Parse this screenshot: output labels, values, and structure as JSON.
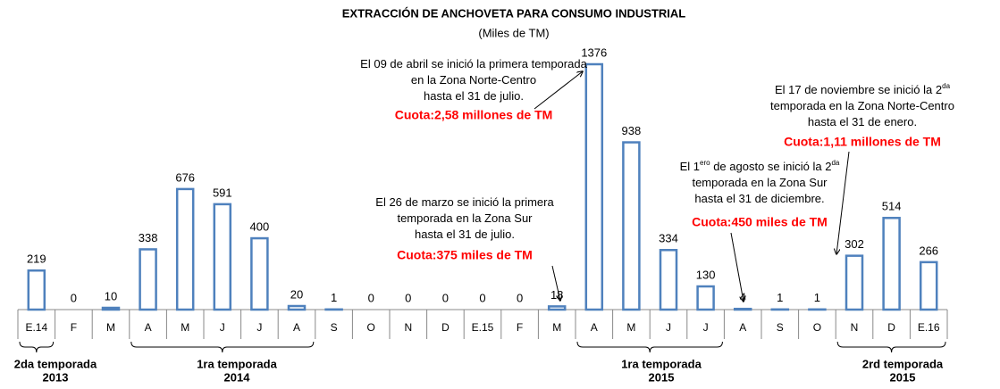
{
  "chart_data": {
    "type": "bar",
    "title": "EXTRACCIÓN DE ANCHOVETA PARA CONSUMO INDUSTRIAL",
    "subtitle": "(Miles de TM)",
    "categories": [
      "E.14",
      "F",
      "M",
      "A",
      "M",
      "J",
      "J",
      "A",
      "S",
      "O",
      "N",
      "D",
      "E.15",
      "F",
      "M",
      "A",
      "M",
      "J",
      "J",
      "A",
      "S",
      "O",
      "N",
      "D",
      "E.16"
    ],
    "values": [
      219,
      0,
      10,
      338,
      676,
      591,
      400,
      20,
      1,
      0,
      0,
      0,
      0,
      0,
      18,
      1376,
      938,
      334,
      130,
      4,
      1,
      1,
      302,
      514,
      266
    ],
    "color": "#4f81bd",
    "annotations": [
      {
        "lines": [
          [
            "El 09 de abril se inició la primera temporada"
          ],
          [
            "en la Zona  Norte-Centro"
          ],
          [
            "hasta el 31 de julio."
          ]
        ],
        "quota": "Cuota:2,58 millones de TM"
      },
      {
        "lines": [
          [
            "El 26 de marzo se inició la primera"
          ],
          [
            "temporada en la Zona Sur"
          ],
          [
            "hasta el 31 de julio."
          ]
        ],
        "quota": "Cuota:375 miles de TM"
      },
      {
        "lines": [
          [
            "El 1",
            "ero",
            " de agosto se inició la 2",
            "da"
          ],
          [
            "temporada en la Zona  Sur"
          ],
          [
            "hasta el 31 de diciembre."
          ]
        ],
        "quota": "Cuota:450 miles de TM"
      },
      {
        "lines": [
          [
            "El 17 de noviembre se inició la 2",
            "da"
          ],
          [
            "temporada en la Zona  Norte-Centro"
          ],
          [
            "hasta el 31 de enero."
          ]
        ],
        "quota": "Cuota:1,11 millones de TM"
      }
    ],
    "groups": [
      {
        "lines": [
          "2da  temporada",
          "2013"
        ]
      },
      {
        "lines": [
          "1ra temporada",
          "2014"
        ]
      },
      {
        "lines": [
          "1ra temporada",
          "2015"
        ]
      },
      {
        "lines": [
          "2rd temporada",
          "2015"
        ]
      }
    ]
  }
}
